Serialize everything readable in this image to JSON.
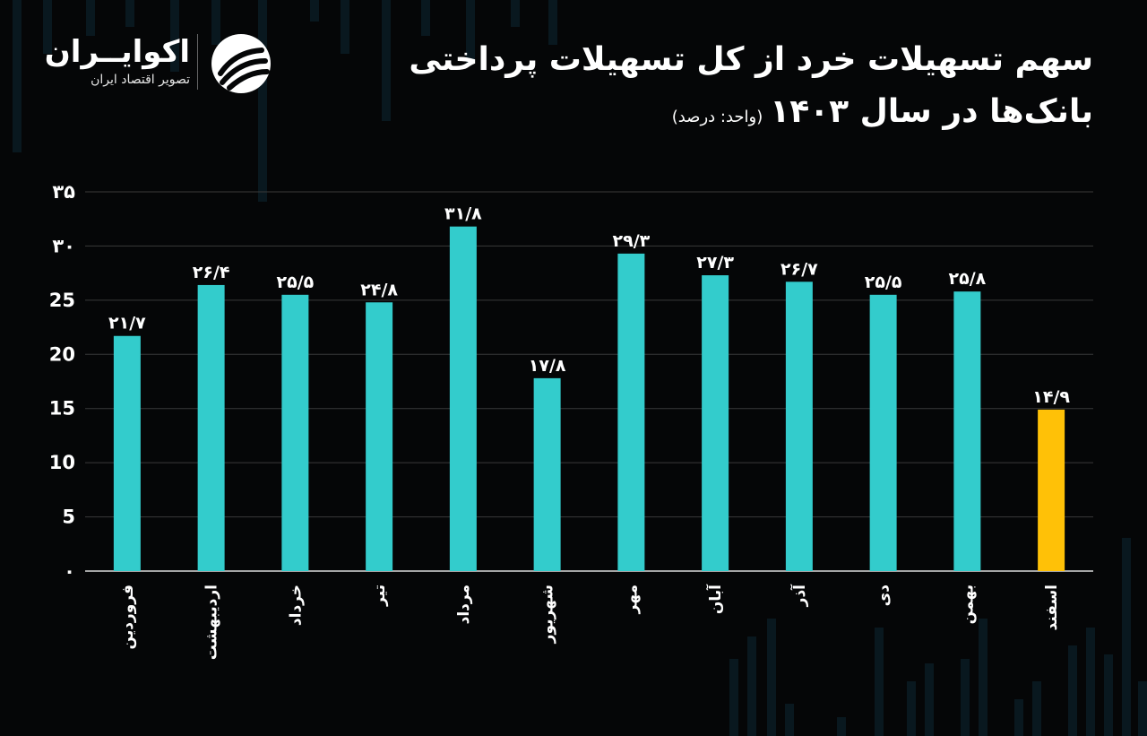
{
  "title_line1": "سهم تسهیلات خرد از کل تسهیلات پرداختی",
  "title_line2": "بانک‌ها در سال ۱۴۰۳",
  "title_unit": "(واحد: درصد)",
  "logo": {
    "name": "اکوایــران",
    "tagline": "تصویر اقتصاد ایران",
    "icon": "ecoiran-swirl-icon"
  },
  "colors": {
    "bar": "#33cccc",
    "highlight": "#ffc107",
    "background": "#050607"
  },
  "chart_data": {
    "type": "bar",
    "categories": [
      "فروردین",
      "اردیبهشت",
      "خرداد",
      "تیر",
      "مرداد",
      "شهریور",
      "مهر",
      "آبان",
      "آذر",
      "دی",
      "بهمن",
      "اسفند"
    ],
    "values": [
      21.7,
      26.4,
      25.5,
      24.8,
      31.8,
      17.8,
      29.3,
      27.3,
      26.7,
      25.5,
      25.8,
      14.9
    ],
    "data_labels": [
      "۲۱/۷",
      "۲۶/۴",
      "۲۵/۵",
      "۲۴/۸",
      "۳۱/۸",
      "۱۷/۸",
      "۲۹/۳",
      "۲۷/۳",
      "۲۶/۷",
      "۲۵/۵",
      "۲۵/۸",
      "۱۴/۹"
    ],
    "highlight_index": 11,
    "ylim": [
      0,
      35
    ],
    "yticks": [
      0,
      5,
      10,
      15,
      20,
      25,
      30,
      35
    ],
    "ytick_labels": [
      "۰",
      "5",
      "10",
      "15",
      "20",
      "25",
      "۳۰",
      "۳۵"
    ],
    "grid": true,
    "legend": "none"
  }
}
